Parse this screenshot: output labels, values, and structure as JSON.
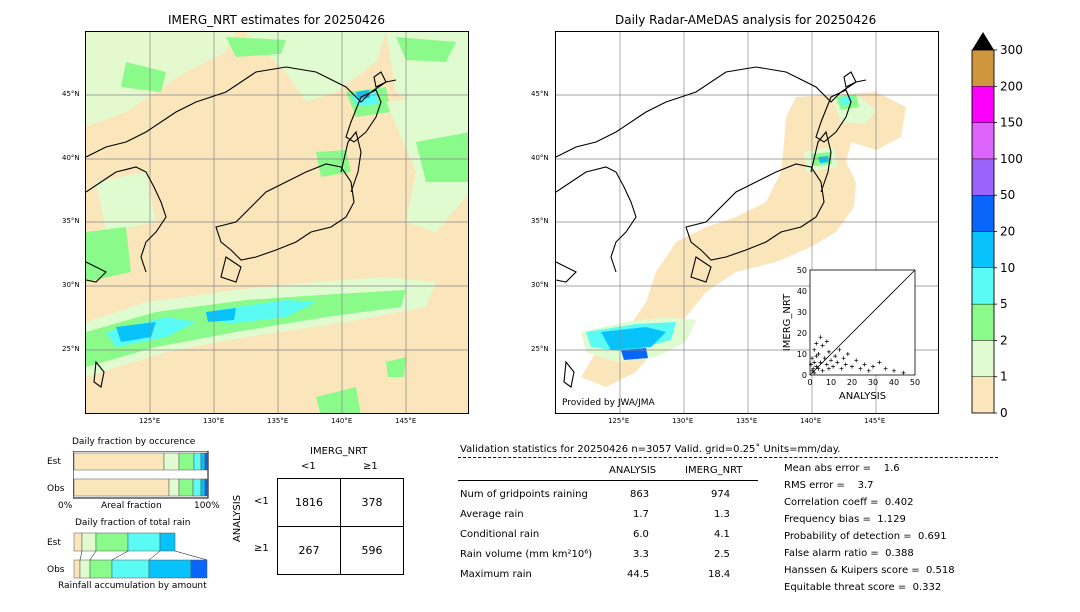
{
  "left_map": {
    "title": "IMERG_NRT estimates for 20250426"
  },
  "right_map": {
    "title": "Daily Radar-AMeDAS analysis for 20250426",
    "credit": "Provided by JWA/JMA"
  },
  "map_axes": {
    "lat_labels": [
      "45°N",
      "40°N",
      "35°N",
      "30°N",
      "25°N"
    ],
    "lon_labels": [
      "125°E",
      "130°E",
      "135°E",
      "140°E",
      "145°E"
    ]
  },
  "colorbar": {
    "ticks": [
      "300",
      "200",
      "150",
      "100",
      "50",
      "20",
      "10",
      "5",
      "2",
      "1",
      "0"
    ],
    "colors": [
      "#fbe5bb",
      "#e1fbd0",
      "#8afb8a",
      "#5afbf5",
      "#07c2fb",
      "#0866fb",
      "#9b63fa",
      "#dc63fb",
      "#fb00fb",
      "#d0963e",
      "#000000"
    ]
  },
  "occurrence": {
    "title": "Daily fraction by occurence",
    "est_label": "Est",
    "obs_label": "Obs",
    "axis_left": "0%",
    "axis_mid": "Areal fraction",
    "axis_right": "100%"
  },
  "accumulation": {
    "title": "Daily fraction of total rain",
    "est_label": "Est",
    "obs_label": "Obs",
    "xlabel": "Rainfall accumulation by amount"
  },
  "contingency": {
    "title": "IMERG_NRT",
    "col_lt": "<1",
    "col_ge": "≥1",
    "ylabel": "ANALYSIS",
    "row_lt": "<1",
    "row_ge": "≥1",
    "cells": [
      [
        "1816",
        "378"
      ],
      [
        "267",
        "596"
      ]
    ]
  },
  "validation": {
    "header": "Validation statistics for 20250426  n=3057 Valid. grid=0.25˚ Units=mm/day.",
    "col_analysis": "ANALYSIS",
    "col_imerg": "IMERG_NRT",
    "rows": [
      {
        "label": "Num of gridpoints raining",
        "analysis": "863",
        "imerg": "974"
      },
      {
        "label": "Average rain",
        "analysis": "1.7",
        "imerg": "1.3"
      },
      {
        "label": "Conditional rain",
        "analysis": "6.0",
        "imerg": "4.1"
      },
      {
        "label": "Rain volume (mm km²10⁶)",
        "analysis": "3.3",
        "imerg": "2.5"
      },
      {
        "label": "Maximum rain",
        "analysis": "44.5",
        "imerg": "18.4"
      }
    ],
    "scores": [
      "Mean abs error =    1.6",
      "RMS error =    3.7",
      "Correlation coeff =  0.402",
      "Frequency bias =  1.129",
      "Probability of detection =  0.691",
      "False alarm ratio =  0.388",
      "Hanssen & Kuipers score =  0.518",
      "Equitable threat score =  0.332"
    ]
  },
  "chart_data": {
    "type": "scatter",
    "xlabel": "ANALYSIS",
    "ylabel": "IMERG_NRT",
    "xlim": [
      0,
      50
    ],
    "ylim": [
      0,
      50
    ],
    "xticks": [
      "0",
      "10",
      "20",
      "30",
      "40",
      "50"
    ],
    "yticks": [
      "0",
      "10",
      "20",
      "30",
      "40",
      "50"
    ],
    "points": [
      [
        1,
        2
      ],
      [
        2,
        1
      ],
      [
        3,
        4
      ],
      [
        4,
        3
      ],
      [
        5,
        6
      ],
      [
        6,
        2
      ],
      [
        7,
        8
      ],
      [
        8,
        5
      ],
      [
        9,
        3
      ],
      [
        10,
        7
      ],
      [
        11,
        4
      ],
      [
        12,
        9
      ],
      [
        13,
        6
      ],
      [
        14,
        12
      ],
      [
        15,
        3
      ],
      [
        16,
        8
      ],
      [
        17,
        5
      ],
      [
        18,
        10
      ],
      [
        20,
        4
      ],
      [
        22,
        7
      ],
      [
        24,
        3
      ],
      [
        26,
        5
      ],
      [
        28,
        2
      ],
      [
        30,
        4
      ],
      [
        33,
        6
      ],
      [
        36,
        3
      ],
      [
        40,
        2
      ],
      [
        44.5,
        1
      ],
      [
        2,
        12
      ],
      [
        3,
        15
      ],
      [
        4,
        10
      ],
      [
        5,
        18
      ],
      [
        6,
        14
      ],
      [
        8,
        16
      ],
      [
        9,
        11
      ],
      [
        1,
        8
      ],
      [
        2,
        6
      ],
      [
        3,
        9
      ],
      [
        0.5,
        5
      ],
      [
        1.5,
        3
      ]
    ]
  }
}
